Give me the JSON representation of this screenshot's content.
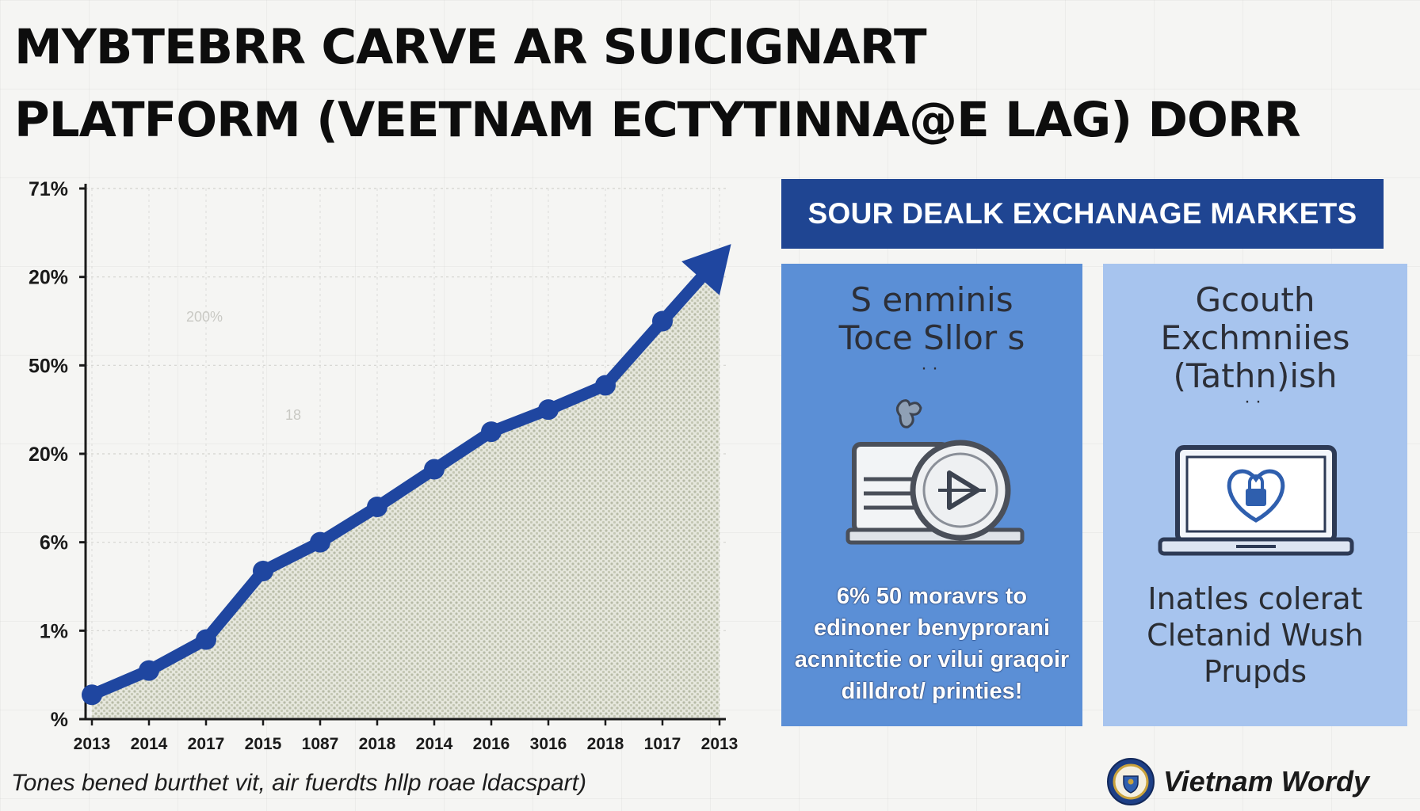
{
  "title_lines": [
    "MYBTEBRR CARVE AR SUICIGNART",
    "PLATFORM (VEETNAM ECTYTINNA@E LAG) DORR"
  ],
  "chart_data": {
    "type": "line",
    "title": "",
    "xlabel": "",
    "ylabel": "",
    "y_tick_labels": [
      "%",
      "1%",
      "6%",
      "20%",
      "50%",
      "20%",
      "71%"
    ],
    "x": [
      "2013",
      "2014",
      "2017",
      "2015",
      "1087",
      "2018",
      "2014",
      "2016",
      "3016",
      "2018",
      "1017",
      "2013"
    ],
    "series": [
      {
        "values": [
          0.55,
          1.1,
          1.8,
          3.35,
          4.0,
          4.8,
          5.65,
          6.5,
          7.0,
          7.55,
          9.0,
          10.45
        ]
      }
    ],
    "ylim": [
      0,
      12
    ],
    "grid": true,
    "legend": "none",
    "faint_labels": [
      "200%",
      "18"
    ],
    "line_color": "#1f46a0",
    "fill_color": "#c9ccbd"
  },
  "panel": {
    "header": "SOUR DEALK EXCHANAGE MARKETS",
    "cards": [
      {
        "heading_lines": [
          "S enminis",
          "Toce Sllor s"
        ],
        "icon": "laptop-play-icon",
        "desc_lines": [
          "6% 50 moravrs to",
          "edinoner benyprorani",
          "acnnitctie or vilui graqoir",
          "dilldrot/ printies!"
        ]
      },
      {
        "heading_lines": [
          "Gcouth",
          "Exchmniies",
          "(Tathn)ish"
        ],
        "icon": "laptop-lock-icon",
        "desc_lines": [
          "Inatles colerat",
          "Cletanid Wush",
          "Prupds"
        ]
      }
    ]
  },
  "footer": {
    "note": "Tones bened burthet vit, air fuerdts hllp roae ldacspart)",
    "brand": "Vietnam Wordy",
    "brand_icon": "seal-icon"
  },
  "colors": {
    "header_bg": "#1f4592",
    "card_left_bg": "#5b8fd6",
    "card_right_bg": "#a7c4ee"
  }
}
